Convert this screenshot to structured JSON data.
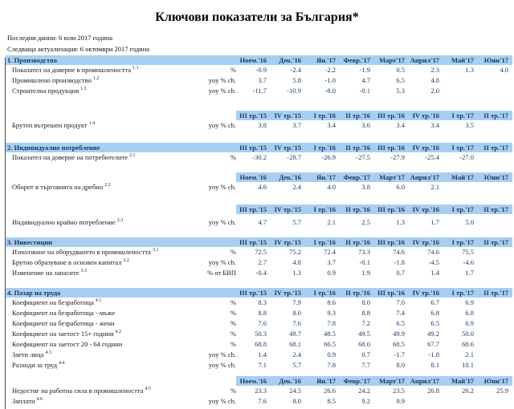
{
  "header": {
    "title": "Ключови показатели за България*",
    "last_data": "Последни данни: 6 юли 2017 година",
    "next_update": "Следваща актуализация: 6 октомври 2017 година"
  },
  "columns": {
    "monthly": [
      "Ноем.'16",
      "Дек.'16",
      "Ян.'17",
      "Февр.'17",
      "Март'17",
      "Април'17",
      "Май'17",
      "Юни'17"
    ],
    "quarterly": [
      "III тр.'15",
      "IV тр.'15",
      "I тр.'16",
      "II тр.'16",
      "III тр.'16",
      "IV тр.'16",
      "I тр.'17",
      "II тр.'17"
    ]
  },
  "colors": {
    "band_background": "#A8CFF0",
    "accent_text": "#17375E"
  },
  "blocks": [
    {
      "type": "section",
      "title": "1. Производство",
      "cols": "monthly"
    },
    {
      "type": "row",
      "label": "Показател на доверие в промишлеността",
      "sup": "1.1",
      "unit": "%",
      "values": [
        "-0.9",
        "-2.4",
        "-2.2",
        "-1.9",
        "0.5",
        "2.3",
        "1.3",
        "4.0"
      ]
    },
    {
      "type": "row",
      "label": "Промишлено производство",
      "sup": "1.2",
      "unit": "yoy % ch.",
      "values": [
        "3.7",
        "5.8",
        "-1.0",
        "4.7",
        "6.5",
        "4.8",
        "",
        ""
      ]
    },
    {
      "type": "row",
      "label": "Строителна продукция",
      "sup": "1.3",
      "unit": "yoy % ch.",
      "values": [
        "-11.7",
        "-10.9",
        "-8.0",
        "-0.1",
        "5.3",
        "2.0",
        "",
        ""
      ]
    },
    {
      "type": "gap",
      "size": "xl"
    },
    {
      "type": "subheader",
      "cols": "quarterly"
    },
    {
      "type": "row",
      "label": "Брутен вътрешен продукт",
      "sup": "1.4",
      "unit": "yoy % ch.",
      "values": [
        "3.8",
        "3.7",
        "3.4",
        "3.6",
        "3.4",
        "3.4",
        "3.5",
        ""
      ]
    },
    {
      "type": "gap",
      "size": "l"
    },
    {
      "type": "section",
      "title": "2. Индивидуално потребление",
      "cols": "quarterly"
    },
    {
      "type": "row",
      "label": "Показател на доверие на потребителите",
      "sup": "2.1",
      "unit": "%",
      "values": [
        "-30.2",
        "-28.7",
        "-26.9",
        "-27.5",
        "-27.9",
        "-25.4",
        "-27.0",
        ""
      ]
    },
    {
      "type": "gap",
      "size": "m"
    },
    {
      "type": "subheader",
      "cols": "monthly"
    },
    {
      "type": "row",
      "label": "Оборот в търговията на дребно",
      "sup": "2.2",
      "unit": "yoy % ch.",
      "values": [
        "4.6",
        "2.4",
        "4.0",
        "3.8",
        "6.0",
        "2.1",
        "",
        ""
      ]
    },
    {
      "type": "gap",
      "size": "l"
    },
    {
      "type": "subheader",
      "cols": "quarterly"
    },
    {
      "type": "gap",
      "size": "xs"
    },
    {
      "type": "row",
      "label": "Индивидуално крайно потребление",
      "sup": "2.3",
      "unit": "yoy % ch.",
      "values": [
        "4.7",
        "5.7",
        "2.1",
        "2.5",
        "1.3",
        "1.7",
        "5.0",
        ""
      ]
    },
    {
      "type": "gap",
      "size": "m"
    },
    {
      "type": "section",
      "title": "3. Инвестиции",
      "cols": "quarterly"
    },
    {
      "type": "row",
      "label": "Използване на оборудването в промишлеността",
      "sup": "3.1",
      "unit": "%",
      "values": [
        "72.5",
        "75.2",
        "72.4",
        "73.3",
        "74.6",
        "74.6",
        "75.5",
        ""
      ]
    },
    {
      "type": "row",
      "label": "Брутно образуване в основен капитал",
      "sup": "3.2",
      "unit": "yoy % ch.",
      "values": [
        "2.7",
        "4.8",
        "3.7",
        "-0.1",
        "-1.8",
        "-4.5",
        "-4.6",
        ""
      ]
    },
    {
      "type": "row",
      "label": "Изменение на запасите",
      "sup": "3.3",
      "unit": "% от БВП",
      "values": [
        "-0.4",
        "1.3",
        "0.9",
        "1.9",
        "0.7",
        "1.4",
        "1.7",
        ""
      ]
    },
    {
      "type": "gap",
      "size": "m"
    },
    {
      "type": "section",
      "title": "4. Пазар на труда",
      "cols": "quarterly"
    },
    {
      "type": "row",
      "label": "Коефициент на безработица",
      "sup": "4.1",
      "unit": "%",
      "values": [
        "8.3",
        "7.9",
        "8.6",
        "8.0",
        "7.0",
        "6.7",
        "6.9",
        ""
      ]
    },
    {
      "type": "row",
      "label": "Коефициент на безработица - мъже",
      "sup": "",
      "unit": "%",
      "values": [
        "8.8",
        "8.0",
        "9.3",
        "8.8",
        "7.4",
        "6.8",
        "6.8",
        ""
      ]
    },
    {
      "type": "row",
      "label": "Коефициент на безработица - жени",
      "sup": "",
      "unit": "%",
      "values": [
        "7.6",
        "7.6",
        "7.8",
        "7.2",
        "6.5",
        "6.5",
        "6.9",
        ""
      ]
    },
    {
      "type": "row",
      "label": "Коефициент на заетост 15+ години",
      "sup": "4.2",
      "unit": "%",
      "values": [
        "50.3",
        "49.7",
        "48.5",
        "49.5",
        "49.9",
        "49.2",
        "50.0",
        ""
      ]
    },
    {
      "type": "row",
      "label": "Коефициент на заетост 20 - 64 години",
      "sup": "",
      "unit": "%",
      "values": [
        "68.8",
        "68.1",
        "66.5",
        "68.0",
        "68.5",
        "67.7",
        "68.6",
        ""
      ]
    },
    {
      "type": "row",
      "label": "Заети лица",
      "sup": "4.3",
      "unit": "yoy % ch.",
      "values": [
        "1.4",
        "2.4",
        "0.9",
        "0.7",
        "-1.7",
        "-1.8",
        "2.1",
        ""
      ]
    },
    {
      "type": "row",
      "label": "Разходи за труд",
      "sup": "4.4",
      "unit": "yoy % ch.",
      "values": [
        "7.1",
        "5.7",
        "7.8",
        "7.7",
        "8.0",
        "8.1",
        "10.1",
        ""
      ]
    },
    {
      "type": "gap",
      "size": "s"
    },
    {
      "type": "subheader",
      "cols": "monthly"
    },
    {
      "type": "row",
      "label": "Недостиг на работна сила в промишлеността",
      "sup": "4.5",
      "unit": "%",
      "values": [
        "23.3",
        "24.5",
        "26.6",
        "24.2",
        "23.5",
        "26.8",
        "26.2",
        "25.9"
      ]
    },
    {
      "type": "row",
      "label": "Заплати",
      "sup": "4.6",
      "unit": "yoy % ch.",
      "values": [
        "7.6",
        "8.0",
        "8.5",
        "9.2",
        "9.9",
        "",
        "",
        ""
      ]
    }
  ]
}
